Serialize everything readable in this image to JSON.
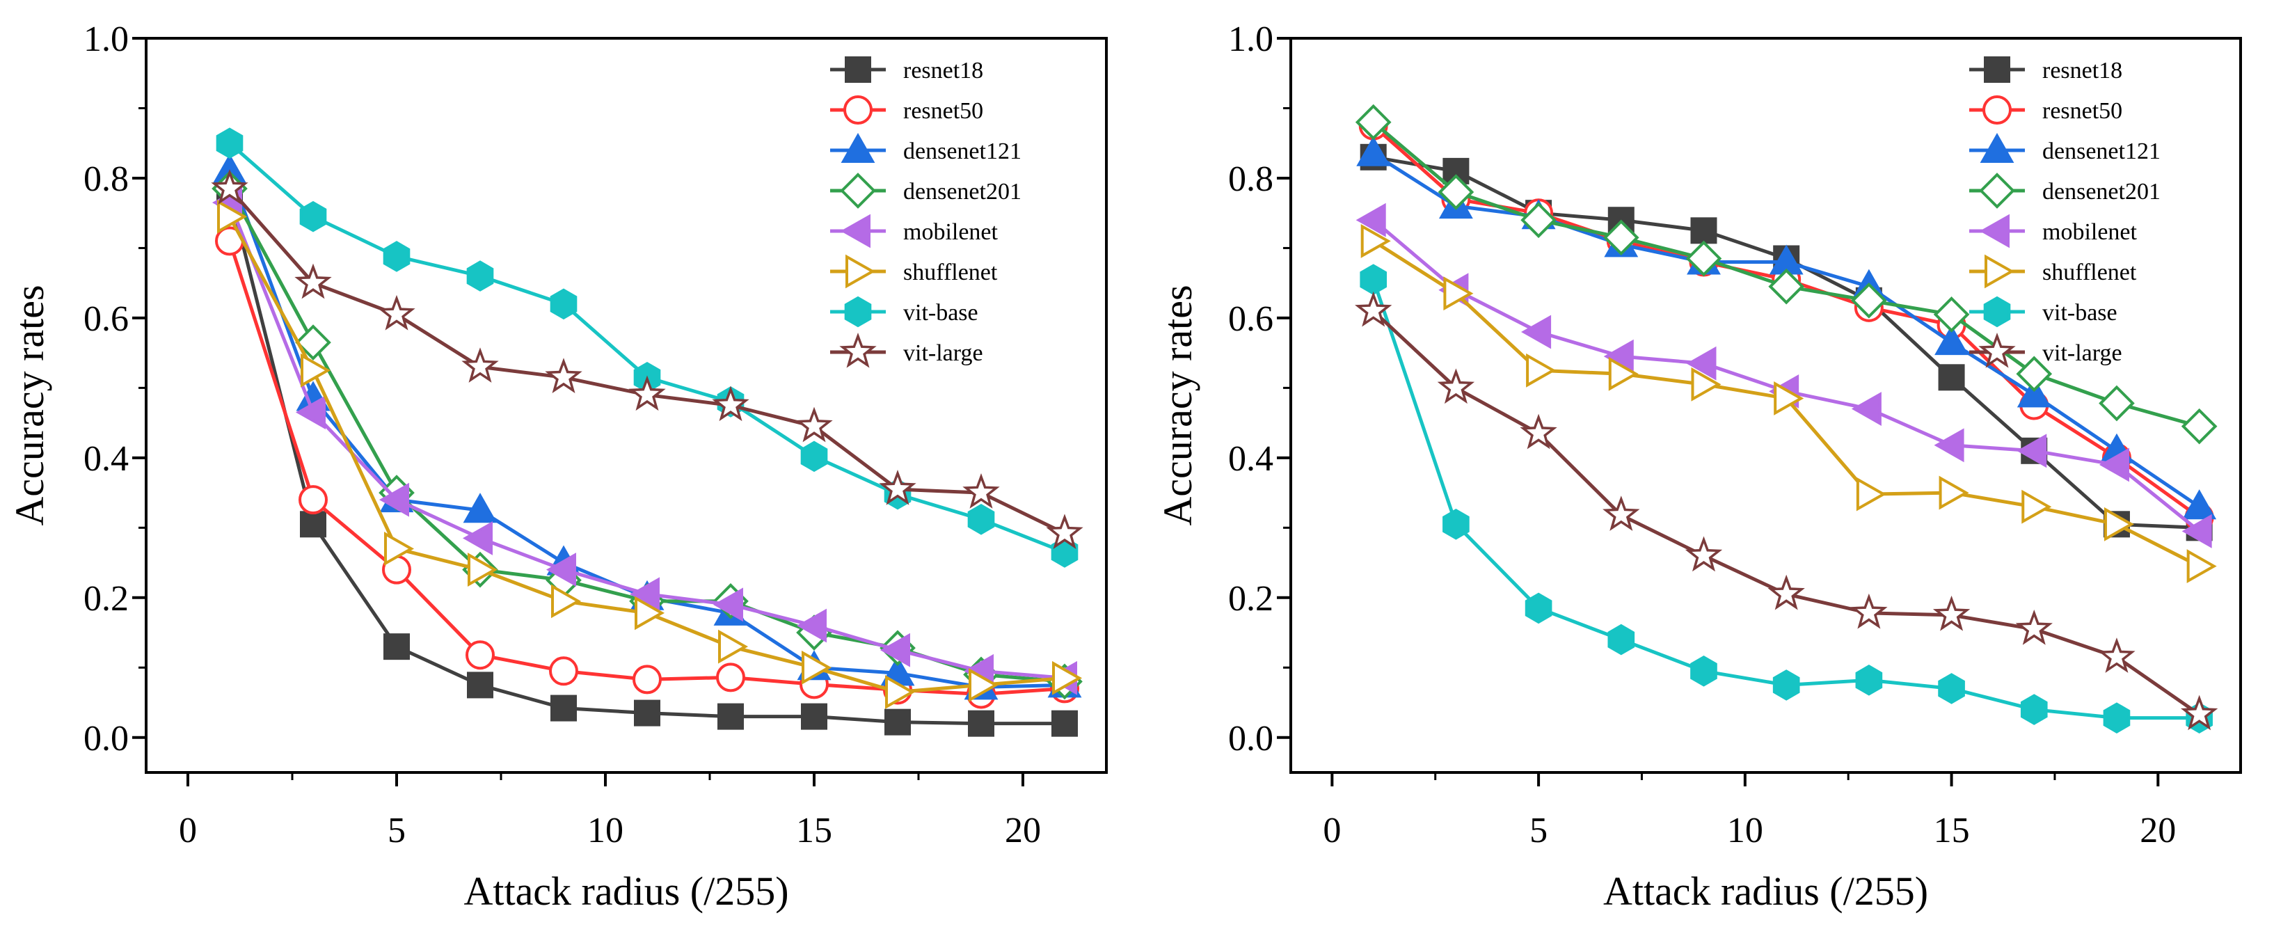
{
  "figure": {
    "description_free": true
  },
  "chart_data": [
    {
      "type": "line",
      "panel": "left",
      "title": "",
      "xlabel": "Attack radius (/255)",
      "ylabel": "Accuracy rates",
      "xlim": [
        -1,
        22
      ],
      "ylim": [
        -0.05,
        1.0
      ],
      "xticks": [
        0,
        5,
        10,
        15,
        20
      ],
      "xtick_labels": [
        "0",
        "5",
        "10",
        "15",
        "20"
      ],
      "yticks": [
        0.0,
        0.2,
        0.4,
        0.6,
        0.8,
        1.0
      ],
      "ytick_labels": [
        "0.0",
        "0.2",
        "0.4",
        "0.6",
        "0.8",
        "1.0"
      ],
      "grid": false,
      "legend_position": "top-right",
      "x": [
        1,
        3,
        5,
        7,
        9,
        11,
        13,
        15,
        17,
        19,
        21
      ],
      "series": [
        {
          "name": "resnet18",
          "color": "#404040",
          "marker": "square-filled",
          "values": [
            0.78,
            0.305,
            0.13,
            0.075,
            0.042,
            0.035,
            0.03,
            0.03,
            0.022,
            0.02,
            0.02
          ]
        },
        {
          "name": "resnet50",
          "color": "#ff3333",
          "marker": "circle-open",
          "values": [
            0.71,
            0.34,
            0.24,
            0.118,
            0.095,
            0.083,
            0.086,
            0.076,
            0.068,
            0.062,
            0.07
          ]
        },
        {
          "name": "densenet121",
          "color": "#1f6fe0",
          "marker": "triangle-up-filled",
          "values": [
            0.81,
            0.485,
            0.34,
            0.325,
            0.25,
            0.2,
            0.178,
            0.1,
            0.092,
            0.072,
            0.075
          ]
        },
        {
          "name": "densenet201",
          "color": "#33a04d",
          "marker": "diamond-open",
          "values": [
            0.785,
            0.565,
            0.35,
            0.24,
            0.225,
            0.195,
            0.195,
            0.15,
            0.128,
            0.09,
            0.08
          ]
        },
        {
          "name": "mobilenet",
          "color": "#b56be6",
          "marker": "triangle-left-filled",
          "values": [
            0.765,
            0.465,
            0.34,
            0.285,
            0.24,
            0.205,
            0.19,
            0.16,
            0.125,
            0.095,
            0.085
          ]
        },
        {
          "name": "shufflenet",
          "color": "#d4a017",
          "marker": "triangle-right-open",
          "values": [
            0.745,
            0.525,
            0.27,
            0.24,
            0.195,
            0.178,
            0.13,
            0.1,
            0.065,
            0.075,
            0.085
          ]
        },
        {
          "name": "vit-base",
          "color": "#17c4c4",
          "marker": "hexagon-filled",
          "values": [
            0.85,
            0.745,
            0.688,
            0.66,
            0.62,
            0.515,
            0.48,
            0.402,
            0.348,
            0.312,
            0.265
          ]
        },
        {
          "name": "vit-large",
          "color": "#7b3b3b",
          "marker": "star-open",
          "values": [
            0.785,
            0.65,
            0.605,
            0.53,
            0.515,
            0.49,
            0.475,
            0.445,
            0.355,
            0.35,
            0.292
          ]
        }
      ]
    },
    {
      "type": "line",
      "panel": "right",
      "title": "",
      "xlabel": "Attack radius (/255)",
      "ylabel": "Accuracy rates",
      "xlim": [
        -1,
        22
      ],
      "ylim": [
        -0.05,
        1.0
      ],
      "xticks": [
        0,
        5,
        10,
        15,
        20
      ],
      "xtick_labels": [
        "0",
        "5",
        "10",
        "15",
        "20"
      ],
      "yticks": [
        0.0,
        0.2,
        0.4,
        0.6,
        0.8,
        1.0
      ],
      "ytick_labels": [
        "0.0",
        "0.2",
        "0.4",
        "0.6",
        "0.8",
        "1.0"
      ],
      "grid": false,
      "legend_position": "top-right",
      "x": [
        1,
        3,
        5,
        7,
        9,
        11,
        13,
        15,
        17,
        19,
        21
      ],
      "series": [
        {
          "name": "resnet18",
          "color": "#404040",
          "marker": "square-filled",
          "values": [
            0.83,
            0.81,
            0.75,
            0.74,
            0.725,
            0.685,
            0.625,
            0.515,
            0.41,
            0.305,
            0.3
          ]
        },
        {
          "name": "resnet50",
          "color": "#ff3333",
          "marker": "circle-open",
          "values": [
            0.875,
            0.77,
            0.75,
            0.71,
            0.68,
            0.655,
            0.615,
            0.59,
            0.475,
            0.4,
            0.315
          ]
        },
        {
          "name": "densenet121",
          "color": "#1f6fe0",
          "marker": "triangle-up-filled",
          "values": [
            0.835,
            0.76,
            0.745,
            0.705,
            0.68,
            0.68,
            0.645,
            0.565,
            0.49,
            0.41,
            0.33
          ]
        },
        {
          "name": "densenet201",
          "color": "#33a04d",
          "marker": "diamond-open",
          "values": [
            0.88,
            0.78,
            0.74,
            0.715,
            0.685,
            0.645,
            0.625,
            0.605,
            0.52,
            0.478,
            0.445
          ]
        },
        {
          "name": "mobilenet",
          "color": "#b56be6",
          "marker": "triangle-left-filled",
          "values": [
            0.74,
            0.64,
            0.58,
            0.545,
            0.535,
            0.495,
            0.47,
            0.418,
            0.41,
            0.39,
            0.295
          ]
        },
        {
          "name": "shufflenet",
          "color": "#d4a017",
          "marker": "triangle-right-open",
          "values": [
            0.71,
            0.635,
            0.525,
            0.52,
            0.505,
            0.485,
            0.348,
            0.35,
            0.33,
            0.305,
            0.245
          ]
        },
        {
          "name": "vit-base",
          "color": "#17c4c4",
          "marker": "hexagon-filled",
          "values": [
            0.655,
            0.305,
            0.185,
            0.14,
            0.095,
            0.075,
            0.082,
            0.07,
            0.04,
            0.028,
            0.028
          ]
        },
        {
          "name": "vit-large",
          "color": "#7b3b3b",
          "marker": "star-open",
          "values": [
            0.61,
            0.5,
            0.435,
            0.318,
            0.26,
            0.205,
            0.178,
            0.175,
            0.155,
            0.115,
            0.033
          ]
        }
      ]
    }
  ]
}
